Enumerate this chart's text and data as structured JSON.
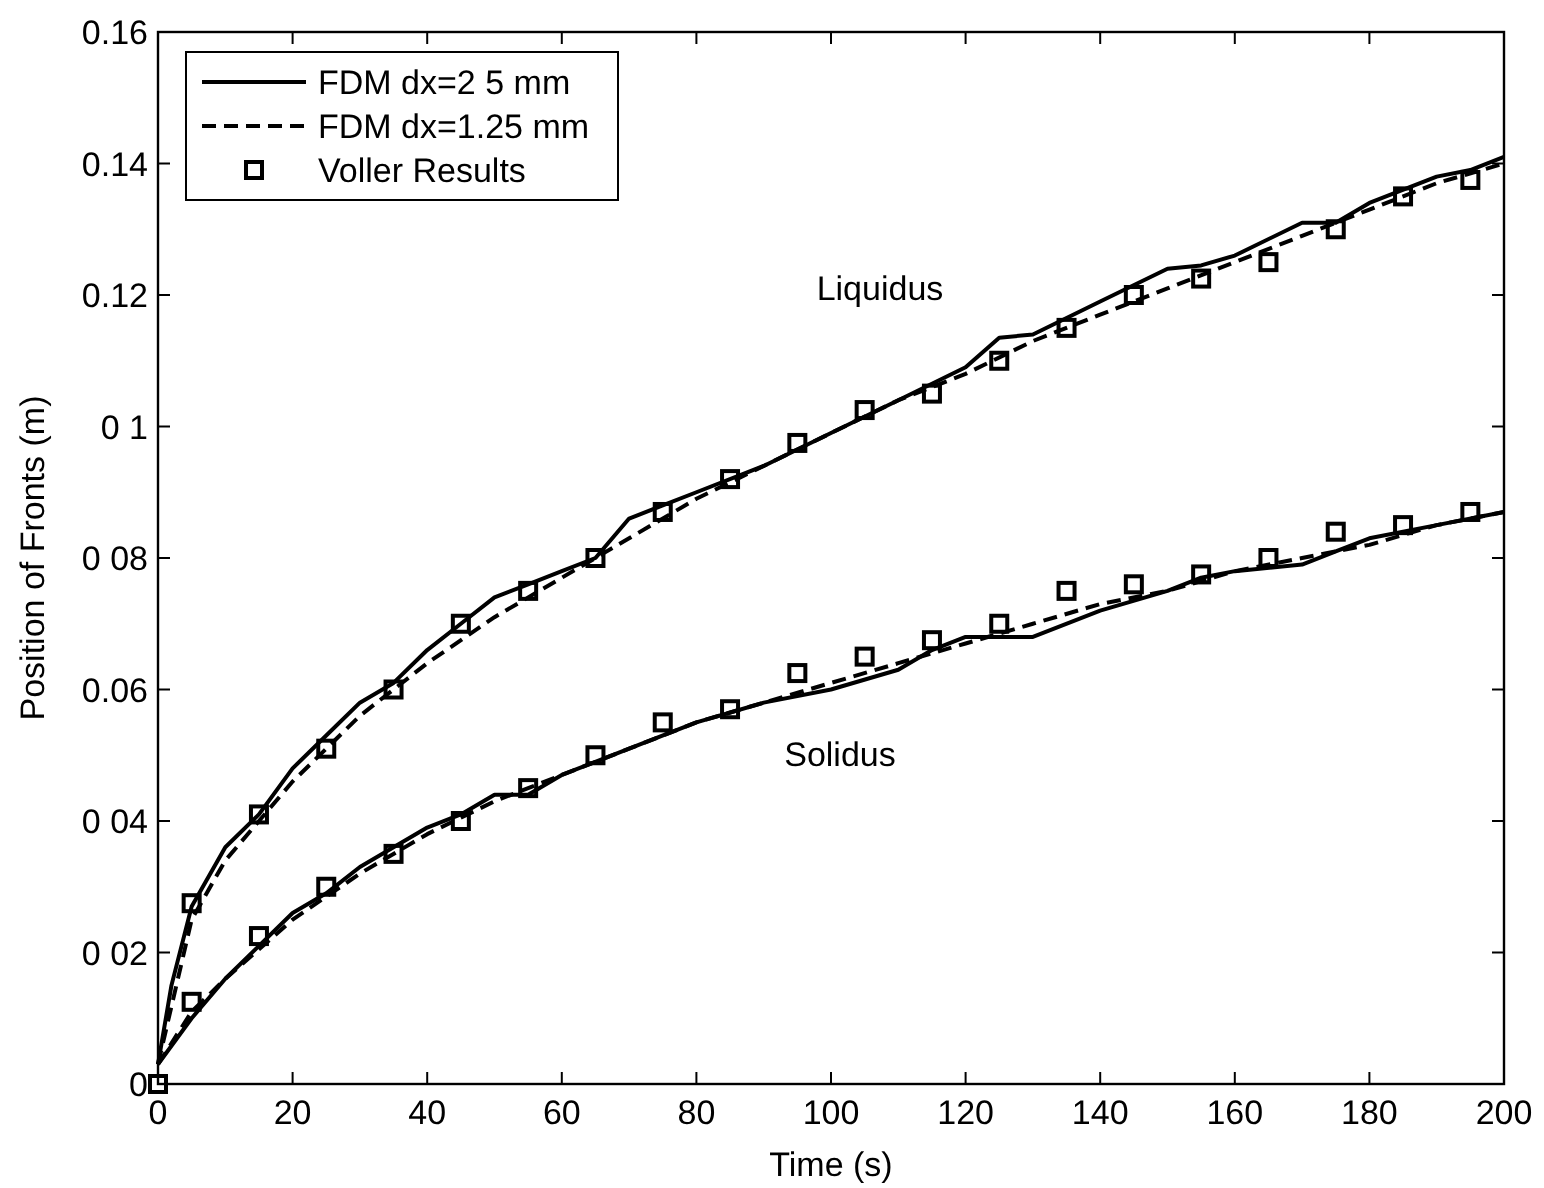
{
  "chart_data": {
    "type": "line",
    "xlabel": "Time (s)",
    "ylabel": "Position of Fronts (m)",
    "xlim": [
      0,
      200
    ],
    "ylim": [
      0,
      0.16
    ],
    "xticks": [
      0,
      20,
      40,
      60,
      80,
      100,
      120,
      140,
      160,
      180,
      200
    ],
    "yticks": [
      {
        "value": 0,
        "label": "0"
      },
      {
        "value": 0.02,
        "label": "0 02"
      },
      {
        "value": 0.04,
        "label": "0 04"
      },
      {
        "value": 0.06,
        "label": "0.06"
      },
      {
        "value": 0.08,
        "label": "0 08"
      },
      {
        "value": 0.1,
        "label": "0 1"
      },
      {
        "value": 0.12,
        "label": "0.12"
      },
      {
        "value": 0.14,
        "label": "0.14"
      },
      {
        "value": 0.16,
        "label": "0.16"
      }
    ],
    "grid": false,
    "legend": "top left",
    "annotations": [
      "Liquidus",
      "Solidus"
    ],
    "series": [
      {
        "name": "FDM dx=2 5 mm",
        "line_style": "solid",
        "marker": "none",
        "color": "#000000",
        "x": [
          0,
          2,
          5,
          10,
          15,
          20,
          25,
          30,
          35,
          40,
          45,
          50,
          55,
          60,
          65,
          70,
          75,
          80,
          90,
          100,
          110,
          120,
          125,
          130,
          140,
          150,
          155,
          160,
          170,
          175,
          180,
          190,
          195,
          200
        ],
        "values": [
          0.003,
          0.015,
          0.027,
          0.036,
          0.041,
          0.048,
          0.053,
          0.058,
          0.061,
          0.066,
          0.07,
          0.074,
          0.076,
          0.078,
          0.08,
          0.086,
          0.088,
          0.09,
          0.094,
          0.099,
          0.104,
          0.109,
          0.1135,
          0.114,
          0.119,
          0.124,
          0.1245,
          0.126,
          0.131,
          0.131,
          0.134,
          0.138,
          0.139,
          0.141
        ]
      },
      {
        "name": "FDM dx=1.25 mm",
        "line_style": "dashed",
        "marker": "none",
        "color": "#000000",
        "x": [
          0,
          5,
          10,
          15,
          20,
          30,
          40,
          50,
          60,
          70,
          80,
          90,
          100,
          110,
          120,
          130,
          140,
          150,
          160,
          170,
          180,
          190,
          200
        ],
        "values": [
          0.003,
          0.025,
          0.034,
          0.04,
          0.046,
          0.056,
          0.064,
          0.071,
          0.077,
          0.083,
          0.089,
          0.094,
          0.099,
          0.104,
          0.108,
          0.113,
          0.117,
          0.121,
          0.125,
          0.129,
          0.133,
          0.137,
          0.14
        ]
      },
      {
        "name": "Voller Results",
        "type": "scatter",
        "marker": "square",
        "color": "#000000",
        "x": [
          0,
          5,
          15,
          25,
          35,
          45,
          55,
          65,
          75,
          85,
          95,
          105,
          115,
          125,
          135,
          145,
          155,
          165,
          175,
          185,
          195
        ],
        "values": [
          0,
          0.0275,
          0.041,
          0.051,
          0.06,
          0.07,
          0.075,
          0.08,
          0.087,
          0.092,
          0.0975,
          0.1025,
          0.105,
          0.11,
          0.115,
          0.12,
          0.1225,
          0.125,
          0.13,
          0.135,
          0.1375
        ]
      },
      {
        "line_style": "solid",
        "marker": "none",
        "color": "#000000",
        "x": [
          0,
          5,
          10,
          15,
          20,
          25,
          30,
          35,
          40,
          45,
          50,
          55,
          60,
          70,
          80,
          90,
          100,
          110,
          115,
          120,
          125,
          130,
          140,
          150,
          155,
          160,
          170,
          175,
          180,
          190,
          200
        ],
        "values": [
          0.003,
          0.01,
          0.016,
          0.021,
          0.026,
          0.029,
          0.033,
          0.036,
          0.039,
          0.041,
          0.044,
          0.044,
          0.047,
          0.051,
          0.055,
          0.058,
          0.06,
          0.063,
          0.066,
          0.068,
          0.068,
          0.068,
          0.072,
          0.075,
          0.077,
          0.078,
          0.079,
          0.081,
          0.083,
          0.085,
          0.087
        ]
      },
      {
        "line_style": "dashed",
        "marker": "none",
        "color": "#000000",
        "x": [
          0,
          5,
          10,
          20,
          30,
          40,
          50,
          60,
          70,
          80,
          90,
          100,
          110,
          120,
          130,
          140,
          150,
          160,
          170,
          180,
          190,
          200
        ],
        "values": [
          0.003,
          0.011,
          0.016,
          0.025,
          0.032,
          0.038,
          0.043,
          0.047,
          0.051,
          0.055,
          0.058,
          0.061,
          0.064,
          0.067,
          0.07,
          0.073,
          0.075,
          0.078,
          0.08,
          0.082,
          0.085,
          0.087
        ]
      },
      {
        "type": "scatter",
        "marker": "square",
        "color": "#000000",
        "x": [
          5,
          15,
          25,
          35,
          45,
          55,
          65,
          75,
          85,
          95,
          105,
          115,
          125,
          135,
          145,
          155,
          165,
          175,
          185,
          195
        ],
        "values": [
          0.0125,
          0.0225,
          0.03,
          0.035,
          0.04,
          0.045,
          0.05,
          0.055,
          0.057,
          0.0625,
          0.065,
          0.0675,
          0.07,
          0.075,
          0.076,
          0.0775,
          0.08,
          0.084,
          0.085,
          0.087
        ]
      }
    ]
  }
}
